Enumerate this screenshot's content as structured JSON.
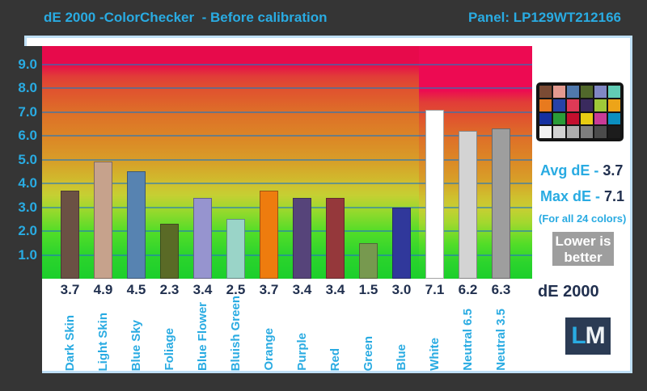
{
  "header": {
    "title": "dE 2000 -ColorChecker  - Before calibration",
    "panel_label": "Panel: LP129WT212166"
  },
  "chart_data": {
    "type": "bar",
    "title": "dE 2000 - ColorChecker - Before calibration",
    "categories": [
      "Dark Skin",
      "Light Skin",
      "Blue Sky",
      "Foliage",
      "Blue Flower",
      "Bluish Green",
      "Orange",
      "Purple",
      "Red",
      "Green",
      "Blue",
      "White",
      "Neutral 6.5",
      "Neutral 3.5"
    ],
    "values": [
      3.7,
      4.9,
      4.5,
      2.3,
      3.4,
      2.5,
      3.7,
      3.4,
      3.4,
      1.5,
      3.0,
      7.1,
      6.2,
      6.3
    ],
    "bar_colors": [
      "#6b5144",
      "#c6a28c",
      "#5783b1",
      "#5a6a26",
      "#9694cf",
      "#9ad4c8",
      "#ee7c0e",
      "#56447a",
      "#95383b",
      "#77994f",
      "#30389b",
      "#ffffff",
      "#d3d3d3",
      "#9e9e9e"
    ],
    "y_tick_labels": [
      "9.0",
      "8.0",
      "7.0",
      "6.0",
      "5.0",
      "4.0",
      "3.0",
      "2.0",
      "1.0"
    ],
    "ylim": [
      0,
      9.8
    ],
    "grid": true,
    "xlabel": "",
    "ylabel": "dE 2000",
    "legend": "none",
    "background": "green-to-red gradient, lower is better"
  },
  "stats": {
    "avg_label": "Avg dE -",
    "avg_value": "3.7",
    "max_label": "Max dE -",
    "max_value": "7.1",
    "note": "(For all 24 colors)",
    "badge_line1": "Lower is",
    "badge_line2": "better",
    "axis_name": "dE 2000"
  },
  "logo": {
    "l": "L",
    "m": "M"
  },
  "colorchecker": {
    "swatches": [
      "#7a4b34",
      "#e39a90",
      "#5079ad",
      "#51682b",
      "#8087c4",
      "#62ccb5",
      "#e87a1e",
      "#2742a8",
      "#df3a56",
      "#3a2a5e",
      "#9fc939",
      "#eda418",
      "#1430a0",
      "#2a9c38",
      "#c40f2e",
      "#e8cc12",
      "#c93b96",
      "#0b8fc0",
      "#f0f0f0",
      "#d2d2d2",
      "#adadad",
      "#7e7e7e",
      "#4b4b4b",
      "#1c1c1c"
    ]
  },
  "colors": {
    "accent": "#29abe2",
    "navy": "#21304f",
    "background": "#353535",
    "badge_bg": "#9e9e9e"
  }
}
